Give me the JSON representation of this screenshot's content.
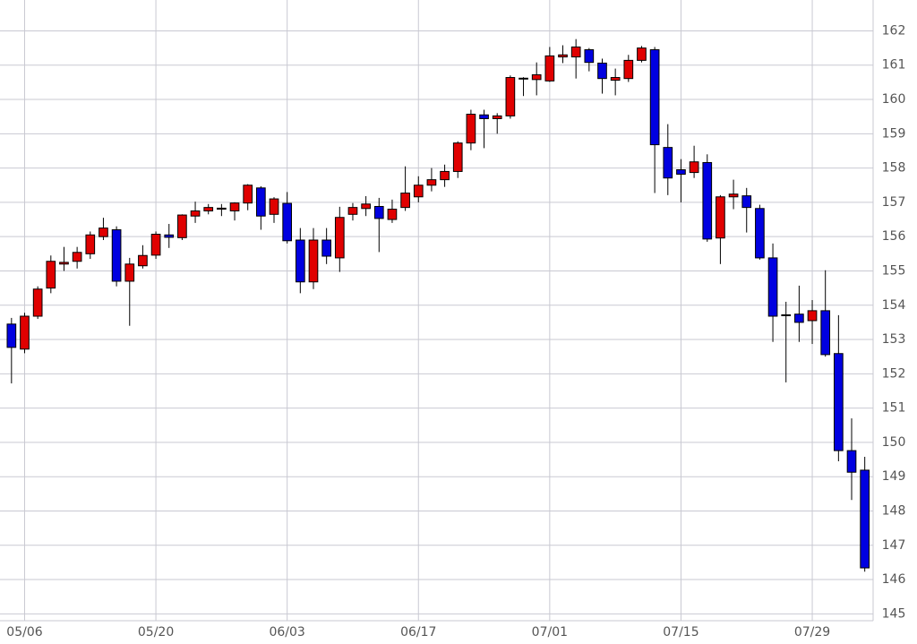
{
  "chart_data": {
    "type": "candlestick",
    "categories": [
      null,
      "05/06",
      null,
      null,
      null,
      null,
      null,
      null,
      null,
      null,
      null,
      "05/20",
      null,
      null,
      null,
      null,
      null,
      null,
      null,
      null,
      null,
      "06/03",
      null,
      null,
      null,
      null,
      null,
      null,
      null,
      null,
      null,
      "06/17",
      null,
      null,
      null,
      null,
      null,
      null,
      null,
      null,
      null,
      "07/01",
      null,
      null,
      null,
      null,
      null,
      null,
      null,
      null,
      null,
      "07/15",
      null,
      null,
      null,
      null,
      null,
      null,
      null,
      null,
      null,
      "07/29",
      null,
      null,
      null,
      null
    ],
    "open": [
      153.45,
      152.72,
      153.68,
      154.5,
      155.2,
      155.28,
      155.5,
      156.0,
      156.2,
      154.7,
      155.15,
      155.46,
      156.05,
      155.97,
      156.6,
      156.75,
      156.8,
      156.75,
      156.98,
      157.42,
      156.65,
      156.97,
      155.9,
      154.68,
      155.9,
      155.38,
      156.65,
      156.82,
      156.88,
      156.5,
      156.85,
      157.16,
      157.5,
      157.66,
      157.9,
      158.73,
      159.55,
      159.44,
      159.52,
      160.6,
      160.58,
      160.54,
      161.24,
      161.24,
      161.45,
      161.06,
      160.56,
      160.61,
      161.14,
      161.45,
      158.6,
      157.95,
      157.87,
      158.16,
      155.96,
      157.16,
      157.19,
      156.82,
      155.38,
      153.72,
      153.74,
      153.55,
      153.84,
      152.59,
      149.76,
      149.19
    ],
    "high": [
      153.63,
      153.78,
      154.55,
      155.45,
      155.7,
      155.7,
      156.15,
      156.55,
      156.3,
      155.38,
      155.75,
      156.15,
      156.37,
      156.65,
      157.02,
      156.95,
      156.95,
      157.0,
      157.53,
      157.47,
      157.15,
      157.3,
      156.25,
      156.25,
      156.25,
      156.87,
      156.98,
      157.18,
      157.13,
      157.08,
      158.05,
      157.76,
      158.0,
      158.1,
      158.78,
      159.7,
      159.7,
      159.6,
      160.7,
      160.65,
      161.08,
      161.53,
      161.58,
      161.76,
      161.5,
      161.19,
      160.9,
      161.3,
      161.56,
      161.53,
      159.28,
      158.26,
      158.65,
      158.4,
      157.21,
      157.66,
      157.42,
      156.93,
      155.8,
      154.1,
      154.57,
      154.15,
      155.02,
      153.71,
      150.7,
      149.58
    ],
    "low": [
      151.72,
      152.6,
      153.6,
      154.35,
      155.0,
      155.07,
      155.35,
      155.9,
      154.55,
      153.4,
      155.07,
      155.35,
      155.67,
      155.9,
      156.4,
      156.65,
      156.6,
      156.47,
      156.77,
      156.2,
      156.4,
      155.8,
      154.35,
      154.47,
      155.2,
      154.97,
      156.47,
      156.6,
      155.55,
      156.4,
      156.75,
      157.0,
      157.32,
      157.45,
      157.71,
      158.52,
      158.58,
      159.0,
      159.44,
      160.1,
      160.12,
      160.51,
      161.06,
      160.61,
      160.82,
      160.17,
      160.12,
      160.51,
      161.08,
      157.27,
      157.21,
      157.0,
      157.71,
      155.85,
      155.2,
      156.8,
      156.12,
      155.33,
      152.93,
      151.75,
      152.93,
      152.87,
      152.5,
      149.45,
      148.32,
      146.23
    ],
    "close": [
      152.77,
      153.68,
      154.47,
      155.28,
      155.25,
      155.54,
      156.05,
      156.25,
      154.7,
      155.2,
      155.45,
      156.07,
      155.98,
      156.63,
      156.75,
      156.85,
      156.83,
      156.98,
      157.5,
      156.6,
      157.1,
      155.88,
      154.68,
      155.9,
      155.43,
      156.56,
      156.85,
      156.95,
      156.53,
      156.8,
      157.27,
      157.5,
      157.66,
      157.9,
      158.73,
      159.57,
      159.44,
      159.52,
      160.64,
      160.62,
      160.72,
      161.27,
      161.3,
      161.53,
      161.08,
      160.61,
      160.64,
      161.14,
      161.5,
      158.68,
      157.71,
      157.82,
      158.18,
      155.93,
      157.16,
      157.24,
      156.85,
      155.38,
      153.68,
      153.7,
      153.5,
      153.84,
      152.56,
      149.76,
      149.13,
      146.34
    ],
    "up_color": "#e00000",
    "down_color": "#0000e0",
    "ylim": [
      144.8,
      162.9
    ],
    "yticks": [
      145,
      146,
      147,
      148,
      149,
      150,
      151,
      152,
      153,
      154,
      155,
      156,
      157,
      158,
      159,
      160,
      161,
      162
    ],
    "grid": true
  }
}
